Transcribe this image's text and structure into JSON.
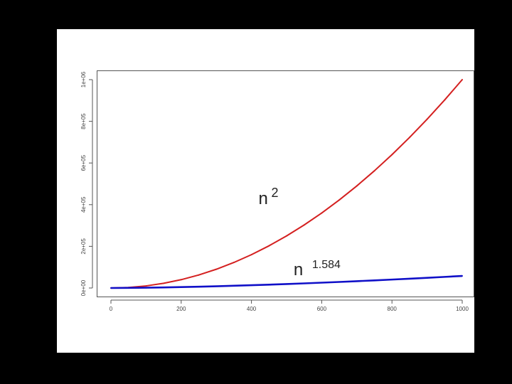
{
  "chart_data": {
    "type": "line",
    "title": "",
    "xlabel": "",
    "ylabel": "",
    "xlim": [
      0,
      1000
    ],
    "ylim": [
      0,
      1000000
    ],
    "x_ticks": [
      "0",
      "200",
      "400",
      "600",
      "800",
      "1000"
    ],
    "y_ticks": [
      "0e+00",
      "2e+05",
      "4e+05",
      "6e+05",
      "8e+05",
      "1e+06"
    ],
    "grid": false,
    "series": [
      {
        "color": "#d42020",
        "x": [
          0,
          50,
          100,
          150,
          200,
          250,
          300,
          350,
          400,
          450,
          500,
          550,
          600,
          650,
          700,
          750,
          800,
          850,
          900,
          950,
          1000
        ],
        "y": [
          0,
          2500,
          10000,
          22500,
          40000,
          62500,
          90000,
          122500,
          160000,
          202500,
          250000,
          302500,
          360000,
          422500,
          490000,
          562500,
          640000,
          722500,
          810000,
          902500,
          1000000
        ]
      },
      {
        "color": "#1010c8",
        "x": [
          0,
          50,
          100,
          150,
          200,
          250,
          300,
          350,
          400,
          450,
          500,
          550,
          600,
          650,
          700,
          750,
          800,
          850,
          900,
          950,
          1000
        ],
        "y": [
          0,
          490,
          1470,
          2800,
          4420,
          6310,
          8440,
          10790,
          13360,
          16130,
          19090,
          22230,
          25560,
          29060,
          32720,
          36540,
          40510,
          44640,
          48910,
          53330,
          57890
        ]
      }
    ],
    "annotations": [
      {
        "base": "n",
        "exponent": "2",
        "color": "#d42020",
        "x": 590,
        "y": 450000
      },
      {
        "base": "n",
        "exponent": "1.584",
        "color": "#1010c8",
        "x": 690,
        "y": 110000
      }
    ]
  }
}
